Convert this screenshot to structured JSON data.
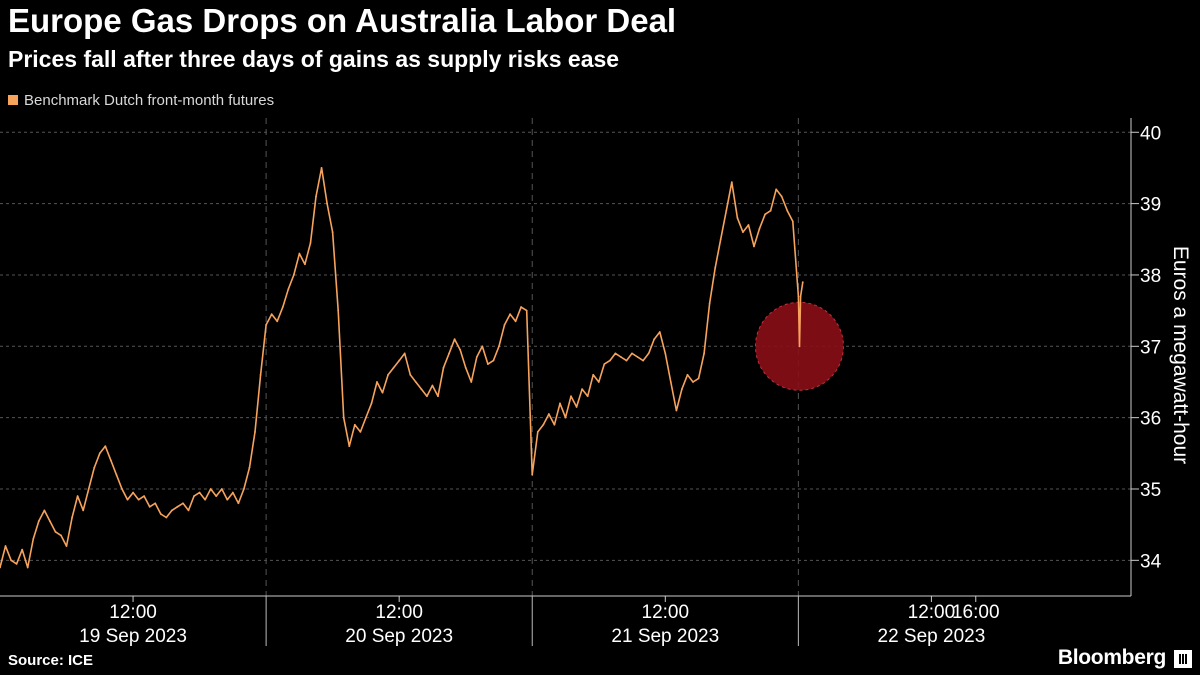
{
  "header": {
    "title": "Europe Gas Drops on Australia Labor Deal",
    "subtitle": "Prices fall after three days of gains as supply risks ease"
  },
  "footer": {
    "source": "Source: ICE",
    "brand": "Bloomberg"
  },
  "colors": {
    "series": "#f7a35c",
    "highlight": "#8b0e17",
    "grid": "#555555",
    "background": "#000000"
  },
  "chart_data": {
    "type": "line",
    "title": "Europe Gas Drops on Australia Labor Deal",
    "subtitle": "Prices fall after three days of gains as supply risks ease",
    "ylabel": "Euros a megawatt-hour",
    "xlabel": "",
    "ylim": [
      33.5,
      40.2
    ],
    "yticks": [
      34,
      35,
      36,
      37,
      38,
      39,
      40
    ],
    "x_range_hours": [
      0,
      102
    ],
    "xticks": [
      {
        "hour": 12,
        "label": "12:00"
      },
      {
        "hour": 36,
        "label": "12:00"
      },
      {
        "hour": 60,
        "label": "12:00"
      },
      {
        "hour": 84,
        "label": "12:00"
      },
      {
        "hour": 88,
        "label": "16:00"
      }
    ],
    "date_labels": [
      {
        "hour": 12,
        "label": "19 Sep 2023"
      },
      {
        "hour": 36,
        "label": "20 Sep 2023"
      },
      {
        "hour": 60,
        "label": "21 Sep 2023"
      },
      {
        "hour": 84,
        "label": "22 Sep 2023"
      }
    ],
    "day_boundaries_hours": [
      0,
      24,
      48,
      72
    ],
    "grid": true,
    "legend_position": "top-left",
    "series": [
      {
        "name": "Benchmark Dutch front-month futures",
        "points": [
          [
            0,
            33.9
          ],
          [
            0.5,
            34.2
          ],
          [
            1.0,
            34.0
          ],
          [
            1.5,
            33.95
          ],
          [
            2.0,
            34.15
          ],
          [
            2.5,
            33.9
          ],
          [
            3.0,
            34.3
          ],
          [
            3.5,
            34.55
          ],
          [
            4.0,
            34.7
          ],
          [
            4.5,
            34.55
          ],
          [
            5.0,
            34.4
          ],
          [
            5.5,
            34.35
          ],
          [
            6.0,
            34.2
          ],
          [
            6.5,
            34.6
          ],
          [
            7.0,
            34.9
          ],
          [
            7.5,
            34.7
          ],
          [
            8.0,
            35.0
          ],
          [
            8.5,
            35.3
          ],
          [
            9.0,
            35.5
          ],
          [
            9.5,
            35.6
          ],
          [
            10.0,
            35.4
          ],
          [
            10.5,
            35.2
          ],
          [
            11.0,
            35.0
          ],
          [
            11.5,
            34.85
          ],
          [
            12.0,
            34.95
          ],
          [
            12.5,
            34.85
          ],
          [
            13.0,
            34.9
          ],
          [
            13.5,
            34.75
          ],
          [
            14.0,
            34.8
          ],
          [
            14.5,
            34.65
          ],
          [
            15.0,
            34.6
          ],
          [
            15.5,
            34.7
          ],
          [
            16.0,
            34.75
          ],
          [
            16.5,
            34.8
          ],
          [
            17.0,
            34.7
          ],
          [
            17.5,
            34.9
          ],
          [
            18.0,
            34.95
          ],
          [
            18.5,
            34.85
          ],
          [
            19.0,
            35.0
          ],
          [
            19.5,
            34.9
          ],
          [
            20.0,
            35.0
          ],
          [
            20.5,
            34.85
          ],
          [
            21.0,
            34.95
          ],
          [
            21.5,
            34.8
          ],
          [
            22.0,
            35.0
          ],
          [
            22.5,
            35.3
          ],
          [
            23.0,
            35.8
          ],
          [
            23.5,
            36.6
          ],
          [
            24.0,
            37.3
          ],
          [
            24.5,
            37.45
          ],
          [
            25.0,
            37.35
          ],
          [
            25.5,
            37.55
          ],
          [
            26.0,
            37.8
          ],
          [
            26.5,
            38.0
          ],
          [
            27.0,
            38.3
          ],
          [
            27.5,
            38.15
          ],
          [
            28.0,
            38.45
          ],
          [
            28.5,
            39.1
          ],
          [
            29.0,
            39.5
          ],
          [
            29.5,
            39.0
          ],
          [
            30.0,
            38.6
          ],
          [
            30.5,
            37.5
          ],
          [
            31.0,
            36.0
          ],
          [
            31.5,
            35.6
          ],
          [
            32.0,
            35.9
          ],
          [
            32.5,
            35.8
          ],
          [
            33.0,
            36.0
          ],
          [
            33.5,
            36.2
          ],
          [
            34.0,
            36.5
          ],
          [
            34.5,
            36.35
          ],
          [
            35.0,
            36.6
          ],
          [
            35.5,
            36.7
          ],
          [
            36.0,
            36.8
          ],
          [
            36.5,
            36.9
          ],
          [
            37.0,
            36.6
          ],
          [
            37.5,
            36.5
          ],
          [
            38.0,
            36.4
          ],
          [
            38.5,
            36.3
          ],
          [
            39.0,
            36.45
          ],
          [
            39.5,
            36.3
          ],
          [
            40.0,
            36.7
          ],
          [
            40.5,
            36.9
          ],
          [
            41.0,
            37.1
          ],
          [
            41.5,
            36.95
          ],
          [
            42.0,
            36.7
          ],
          [
            42.5,
            36.5
          ],
          [
            43.0,
            36.85
          ],
          [
            43.5,
            37.0
          ],
          [
            44.0,
            36.75
          ],
          [
            44.5,
            36.8
          ],
          [
            45.0,
            37.0
          ],
          [
            45.5,
            37.3
          ],
          [
            46.0,
            37.45
          ],
          [
            46.5,
            37.35
          ],
          [
            47.0,
            37.55
          ],
          [
            47.5,
            37.5
          ],
          [
            48.0,
            35.2
          ],
          [
            48.5,
            35.8
          ],
          [
            49.0,
            35.9
          ],
          [
            49.5,
            36.05
          ],
          [
            50.0,
            35.9
          ],
          [
            50.5,
            36.2
          ],
          [
            51.0,
            36.0
          ],
          [
            51.5,
            36.3
          ],
          [
            52.0,
            36.15
          ],
          [
            52.5,
            36.4
          ],
          [
            53.0,
            36.3
          ],
          [
            53.5,
            36.6
          ],
          [
            54.0,
            36.5
          ],
          [
            54.5,
            36.75
          ],
          [
            55.0,
            36.8
          ],
          [
            55.5,
            36.9
          ],
          [
            56.0,
            36.85
          ],
          [
            56.5,
            36.8
          ],
          [
            57.0,
            36.9
          ],
          [
            57.5,
            36.85
          ],
          [
            58.0,
            36.8
          ],
          [
            58.5,
            36.9
          ],
          [
            59.0,
            37.1
          ],
          [
            59.5,
            37.2
          ],
          [
            60.0,
            36.9
          ],
          [
            60.5,
            36.5
          ],
          [
            61.0,
            36.1
          ],
          [
            61.5,
            36.4
          ],
          [
            62.0,
            36.6
          ],
          [
            62.5,
            36.5
          ],
          [
            63.0,
            36.55
          ],
          [
            63.5,
            36.9
          ],
          [
            64.0,
            37.6
          ],
          [
            64.5,
            38.1
          ],
          [
            65.0,
            38.5
          ],
          [
            65.5,
            38.9
          ],
          [
            66.0,
            39.3
          ],
          [
            66.5,
            38.8
          ],
          [
            67.0,
            38.6
          ],
          [
            67.5,
            38.7
          ],
          [
            68.0,
            38.4
          ],
          [
            68.5,
            38.65
          ],
          [
            69.0,
            38.85
          ],
          [
            69.5,
            38.9
          ],
          [
            70.0,
            39.2
          ],
          [
            70.5,
            39.1
          ],
          [
            71.0,
            38.9
          ],
          [
            71.5,
            38.75
          ],
          [
            72.0,
            37.7
          ],
          [
            72.1,
            37.0
          ],
          [
            72.2,
            37.7
          ],
          [
            72.4,
            37.9
          ]
        ]
      }
    ],
    "highlight": {
      "hour": 72.1,
      "value": 37.0
    }
  }
}
